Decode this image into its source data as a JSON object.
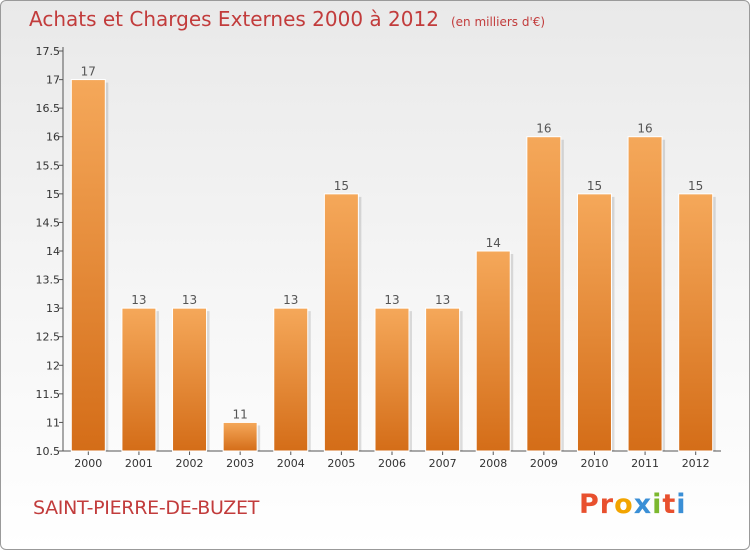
{
  "header": {
    "title": "Achats et Charges Externes 2000 à 2012",
    "unit": "(en milliers d'€)"
  },
  "footer": {
    "town": "SAINT-PIERRE-DE-BUZET",
    "logo_letters": [
      "P",
      "r",
      "o",
      "x",
      "i",
      "t",
      "i"
    ]
  },
  "colors": {
    "title": "#c23c3c",
    "bar_top": "#f5a85a",
    "bar_bottom": "#d46d18",
    "logo": [
      "#e8502e",
      "#e8502e",
      "#f2a400",
      "#3a8fd6",
      "#7cb82f",
      "#e8502e",
      "#3a8fd6"
    ]
  },
  "chart_data": {
    "type": "bar",
    "title": "Achats et Charges Externes 2000 à 2012",
    "categories": [
      "2000",
      "2001",
      "2002",
      "2003",
      "2004",
      "2005",
      "2006",
      "2007",
      "2008",
      "2009",
      "2010",
      "2011",
      "2012"
    ],
    "values": [
      17,
      13,
      13,
      11,
      13,
      15,
      13,
      13,
      14,
      16,
      15,
      16,
      15
    ],
    "ylim": [
      10.5,
      17.5
    ],
    "yticks": [
      10.5,
      11,
      11.5,
      12,
      12.5,
      13,
      13.5,
      14,
      14.5,
      15,
      15.5,
      16,
      16.5,
      17,
      17.5
    ],
    "ytick_labels": [
      "10.5",
      "11",
      "11.5",
      "12",
      "12.5",
      "13",
      "13.5",
      "14",
      "14.5",
      "15",
      "15.5",
      "16",
      "16.5",
      "17",
      "17.5"
    ],
    "data_labels": [
      "17",
      "13",
      "13",
      "11",
      "13",
      "15",
      "13",
      "13",
      "14",
      "16",
      "15",
      "16",
      "15"
    ],
    "grid": false,
    "legend": "none"
  }
}
